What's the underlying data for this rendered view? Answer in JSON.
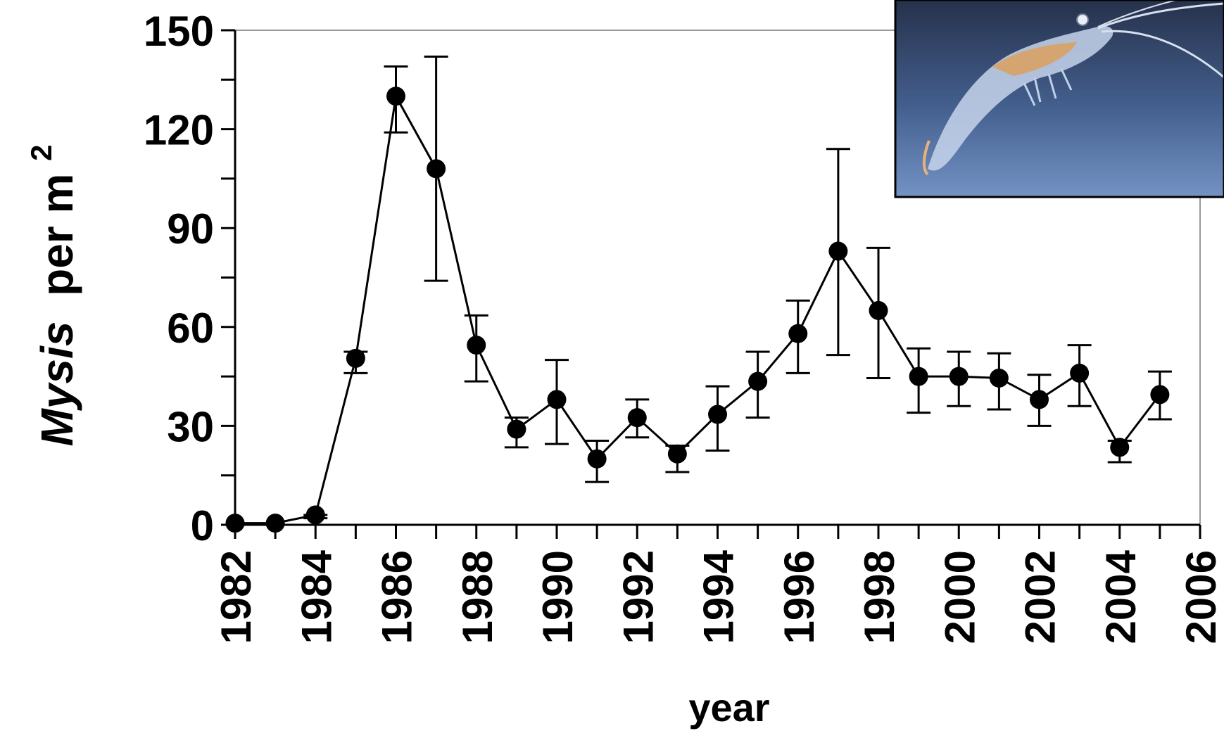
{
  "chart_data": {
    "type": "line",
    "xlabel": "year",
    "ylabel": {
      "italic_part": "Mysis",
      "normal_part": "per m",
      "superscript": "2"
    },
    "xlim": [
      1982,
      2006
    ],
    "ylim": [
      0,
      150
    ],
    "x_ticks": [
      1982,
      1984,
      1986,
      1988,
      1990,
      1992,
      1994,
      1996,
      1998,
      2000,
      2002,
      2004,
      2006
    ],
    "y_ticks": [
      0,
      30,
      60,
      90,
      120,
      150
    ],
    "grid": false,
    "series": [
      {
        "x": [
          1982,
          1983,
          1984,
          1985,
          1986,
          1987,
          1988,
          1989,
          1990,
          1991,
          1992,
          1993,
          1994,
          1995,
          1996,
          1997,
          1998,
          1999,
          2000,
          2001,
          2002,
          2003,
          2004,
          2005
        ],
        "y": [
          0.5,
          0.5,
          3,
          50.5,
          130,
          108,
          54.5,
          29,
          38,
          20,
          32.5,
          21.5,
          33.5,
          43.5,
          58,
          83,
          65,
          45,
          45,
          44.5,
          38,
          46,
          23.5,
          39.5
        ],
        "error_low": [
          0.5,
          0.5,
          2,
          46,
          119,
          74,
          43.5,
          23.5,
          24.5,
          13,
          26.5,
          16,
          22.5,
          32.5,
          46,
          51.5,
          44.5,
          34,
          36,
          35,
          30,
          36,
          19,
          32
        ],
        "error_high": [
          0.5,
          0.5,
          3,
          52.5,
          139,
          142,
          63.5,
          32.5,
          50,
          25.5,
          38,
          24,
          42,
          52.5,
          68,
          114,
          84,
          53.5,
          52.5,
          52,
          45.5,
          54.5,
          25.5,
          46.5
        ]
      }
    ]
  },
  "inset_photo": {
    "subject": "mysis-shrimp-photo",
    "colors": {
      "background_top": "#2a3550",
      "background_bottom": "#6f8fc0",
      "body": "#c9d6ea",
      "gut": "#d8a46a"
    }
  },
  "colors": {
    "marker": "#000000",
    "line": "#000000",
    "frame": "#9a9a9a"
  }
}
